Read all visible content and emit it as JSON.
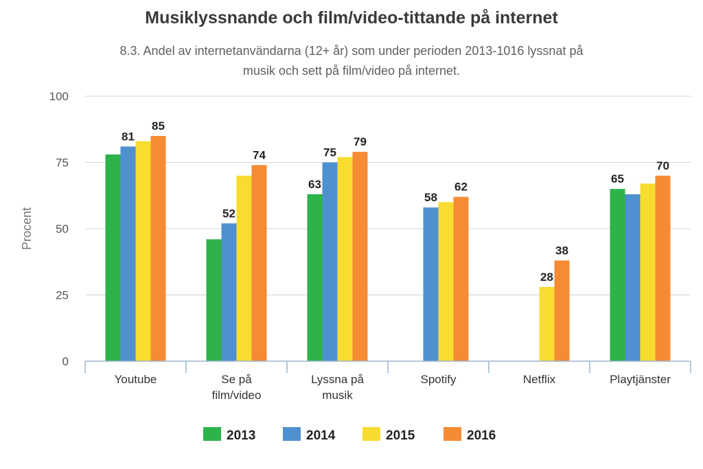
{
  "chart_data": {
    "type": "bar",
    "title": "Musiklyssnande och film/video-tittande på internet",
    "subtitle": "8.3. Andel av internetanvändarna (12+ år) som under perioden 2013-1016 lyssnat på musik och sett på film/video på internet.",
    "xlabel": "",
    "ylabel": "Procent",
    "ylim": [
      0,
      100
    ],
    "yticks": [
      "0",
      "25",
      "50",
      "75",
      "100"
    ],
    "categories": [
      [
        "Youtube"
      ],
      [
        "Se på",
        "film/video"
      ],
      [
        "Lyssna på",
        "musik"
      ],
      [
        "Spotify"
      ],
      [
        "Netflix"
      ],
      [
        "Playtjänster"
      ]
    ],
    "series": [
      {
        "name": "2013",
        "color": "#2db34a",
        "values": [
          78,
          46,
          63,
          null,
          null,
          65
        ],
        "labels": [
          "",
          "",
          "63",
          "",
          "",
          "65"
        ]
      },
      {
        "name": "2014",
        "color": "#4f90d0",
        "values": [
          81,
          52,
          75,
          58,
          null,
          63
        ],
        "labels": [
          "81",
          "52",
          "75",
          "58",
          "",
          ""
        ]
      },
      {
        "name": "2015",
        "color": "#f9dc30",
        "values": [
          83,
          70,
          77,
          60,
          28,
          67
        ],
        "labels": [
          "",
          "",
          "",
          "",
          "28",
          ""
        ]
      },
      {
        "name": "2016",
        "color": "#f58b35",
        "values": [
          85,
          74,
          79,
          62,
          38,
          70
        ],
        "labels": [
          "85",
          "74",
          "79",
          "62",
          "38",
          "70"
        ]
      }
    ],
    "grid": true,
    "legend": "bottom"
  }
}
